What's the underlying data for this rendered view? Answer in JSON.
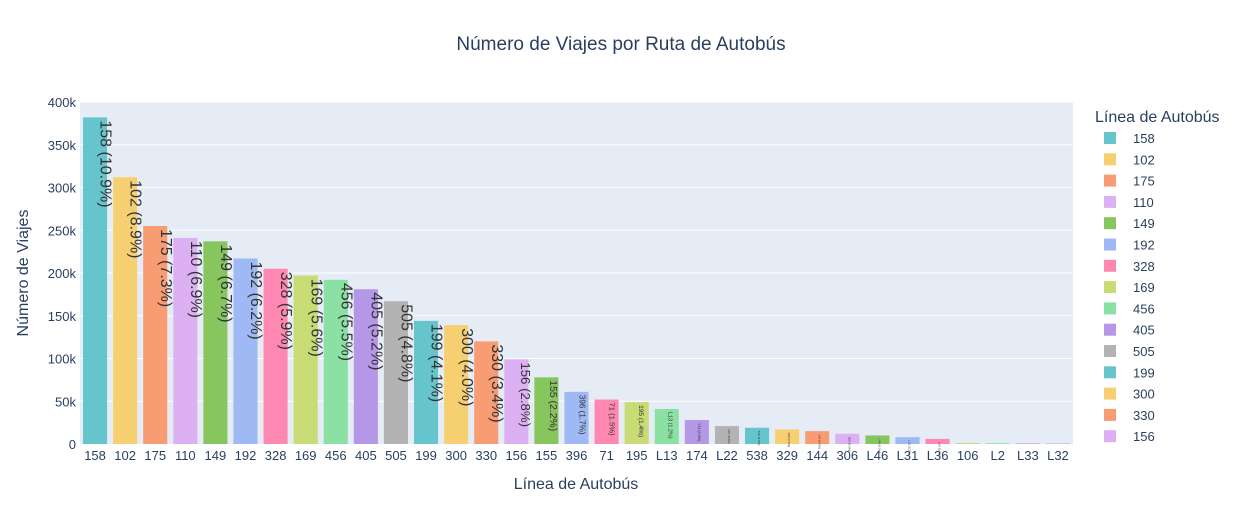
{
  "chart_data": {
    "type": "bar",
    "title": "Número de Viajes por Ruta de Autobús",
    "xlabel": "Línea de Autobús",
    "ylabel": "Número de Viajes",
    "legend_title": "Línea de Autobús",
    "legend_placement": "right",
    "grid": true,
    "ylim": [
      0,
      400000
    ],
    "y_ticks": [
      0,
      50000,
      100000,
      150000,
      200000,
      250000,
      300000,
      350000,
      400000
    ],
    "y_tick_labels": [
      "0",
      "50k",
      "100k",
      "150k",
      "200k",
      "250k",
      "300k",
      "350k",
      "400k"
    ],
    "categories": [
      "158",
      "102",
      "175",
      "110",
      "149",
      "192",
      "328",
      "169",
      "456",
      "405",
      "505",
      "199",
      "300",
      "330",
      "156",
      "155",
      "396",
      "71",
      "195",
      "L13",
      "174",
      "L22",
      "538",
      "329",
      "144",
      "306",
      "L46",
      "L31",
      "L36",
      "106",
      "L2",
      "L33",
      "L32"
    ],
    "values": [
      382000,
      312000,
      255000,
      241000,
      237000,
      217000,
      205000,
      197000,
      192000,
      181000,
      167000,
      144000,
      139000,
      120000,
      99000,
      78000,
      61000,
      52000,
      49000,
      41000,
      28000,
      21000,
      19000,
      17000,
      15000,
      12000,
      10000,
      8000,
      6000,
      1200,
      900,
      700,
      600
    ],
    "labels": [
      "158 (10.9%)",
      "102 (8.9%)",
      "175 (7.3%)",
      "110 (6.9%)",
      "149 (6.7%)",
      "192 (6.2%)",
      "328 (5.9%)",
      "169 (5.6%)",
      "456 (5.5%)",
      "405 (5.2%)",
      "505 (4.8%)",
      "199 (4.1%)",
      "300 (4.0%)",
      "330 (3.4%)",
      "156 (2.8%)",
      "155 (2.2%)",
      "396 (1.7%)",
      "71 (1.5%)",
      "195 (1.4%)",
      "L13 (1.2%)",
      "174 (0.8%)",
      "L22 (0.6%)",
      "538 (0.5%)",
      "329 (0.5%)",
      "144 (0.4%)",
      "306 (0.3%)",
      "L46 (0.3%)",
      "L31 (0.2%)",
      "L36 (0.2%)",
      "",
      "",
      "",
      ""
    ],
    "colors": [
      "#66C5CC",
      "#F6CF71",
      "#F89C74",
      "#DCB0F2",
      "#87C55F",
      "#9EB9F3",
      "#FE88B1",
      "#C9DB74",
      "#8BE0A4",
      "#B497E7",
      "#B3B3B3"
    ],
    "legend_entries": [
      "158",
      "102",
      "175",
      "110",
      "149",
      "192",
      "328",
      "169",
      "456",
      "405",
      "505",
      "199",
      "300",
      "330",
      "156"
    ]
  }
}
